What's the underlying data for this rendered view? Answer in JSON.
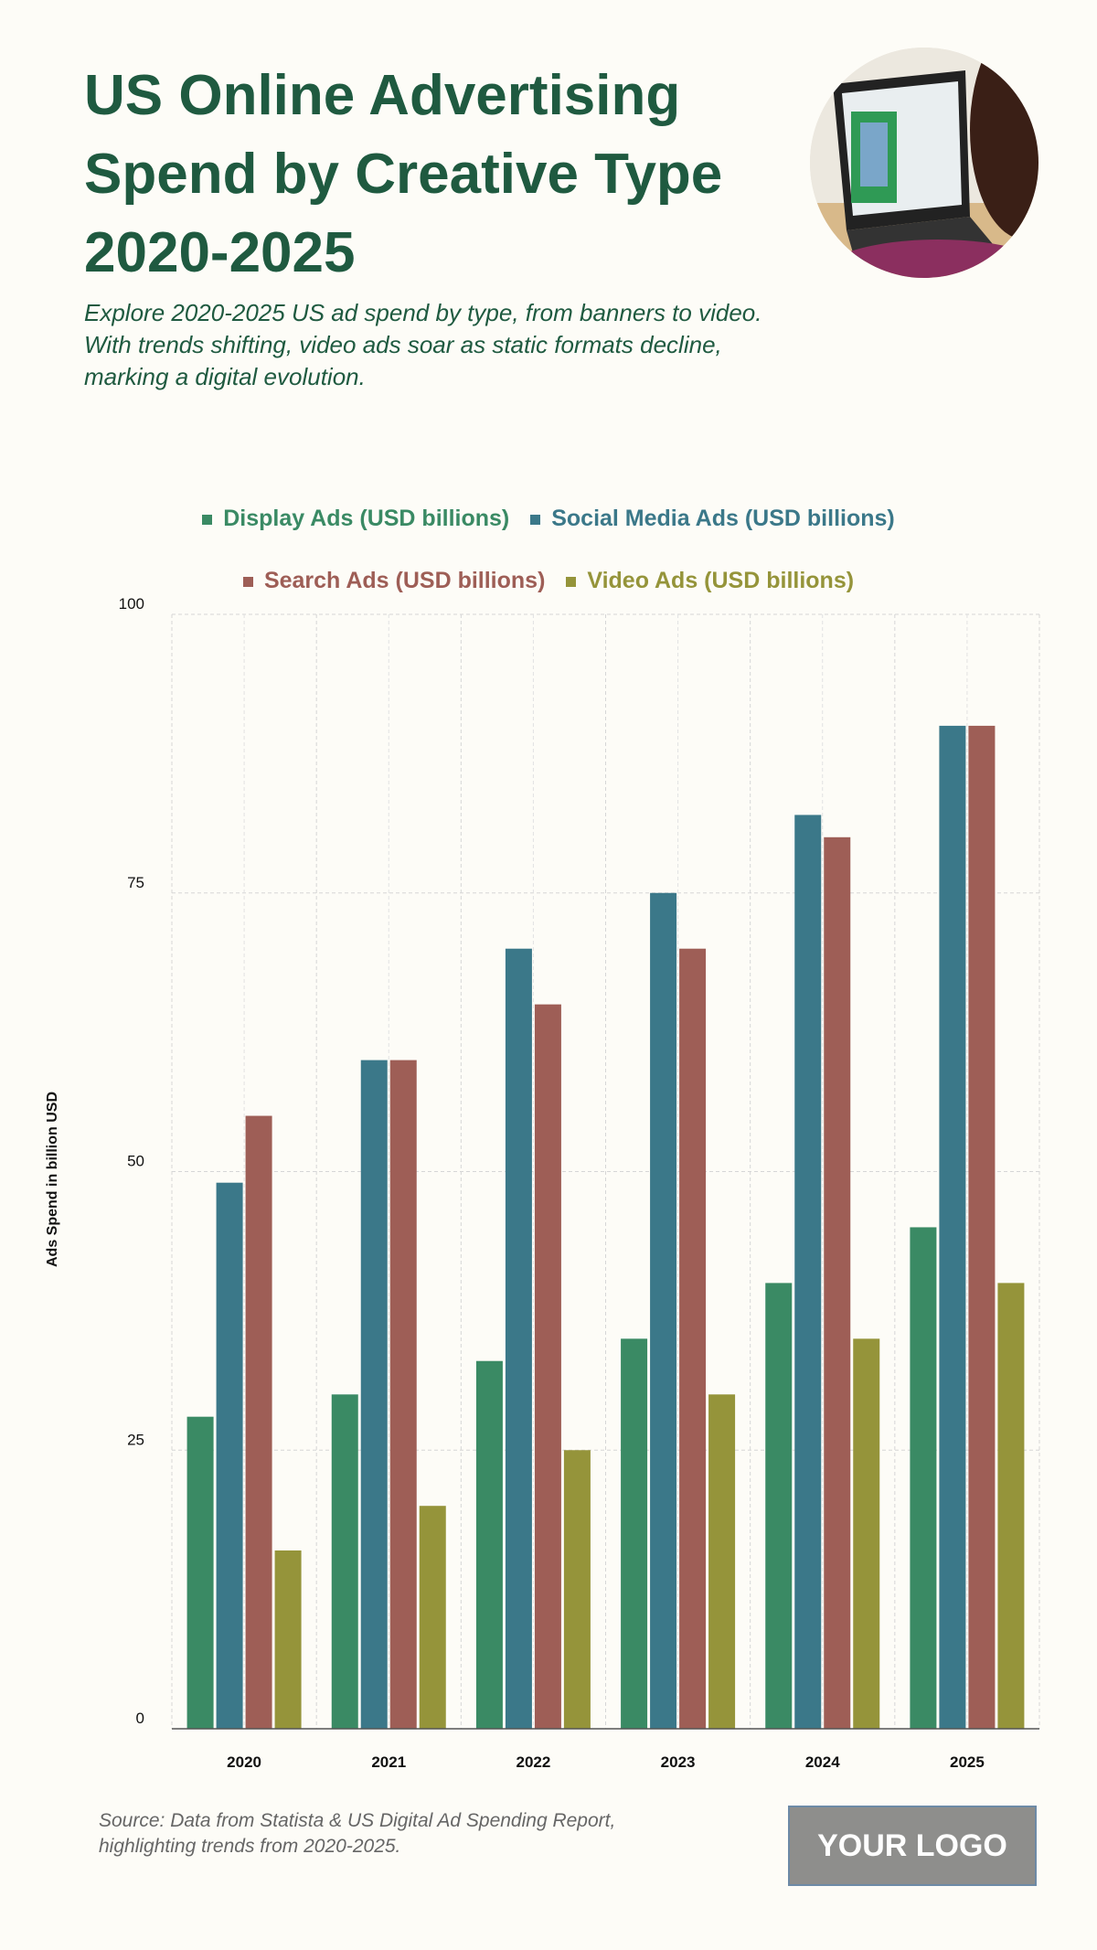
{
  "header": {
    "title": "US Online Advertising Spend by Creative Type 2020-2025",
    "subtitle": "Explore 2020-2025 US ad spend by type, from banners to video. With trends shifting, video ads soar as static formats decline, marking a digital evolution."
  },
  "footer": {
    "source": "Source: Data from Statista & US Digital Ad Spending Report, highlighting trends from 2020-2025.",
    "logo": "YOUR LOGO"
  },
  "chart_data": {
    "type": "bar",
    "categories": [
      "2020",
      "2021",
      "2022",
      "2023",
      "2024",
      "2025"
    ],
    "series": [
      {
        "name": "Display Ads (USD billions)",
        "color": "#3a8a64",
        "values": [
          28,
          30,
          33,
          35,
          40,
          45
        ]
      },
      {
        "name": "Social Media Ads (USD billions)",
        "color": "#3b7889",
        "values": [
          49,
          60,
          70,
          75,
          82,
          90
        ]
      },
      {
        "name": "Search Ads (USD billions)",
        "color": "#9e5e56",
        "values": [
          55,
          60,
          65,
          70,
          80,
          90
        ]
      },
      {
        "name": "Video Ads (USD billions)",
        "color": "#95943a",
        "values": [
          16,
          20,
          25,
          30,
          35,
          40
        ]
      }
    ],
    "ylabel": "Ads Spend in billion USD",
    "xlabel": "",
    "ylim": [
      0,
      100
    ],
    "yticks": [
      "0",
      "25",
      "50",
      "75",
      "100"
    ],
    "grid": true,
    "legend": "top"
  }
}
